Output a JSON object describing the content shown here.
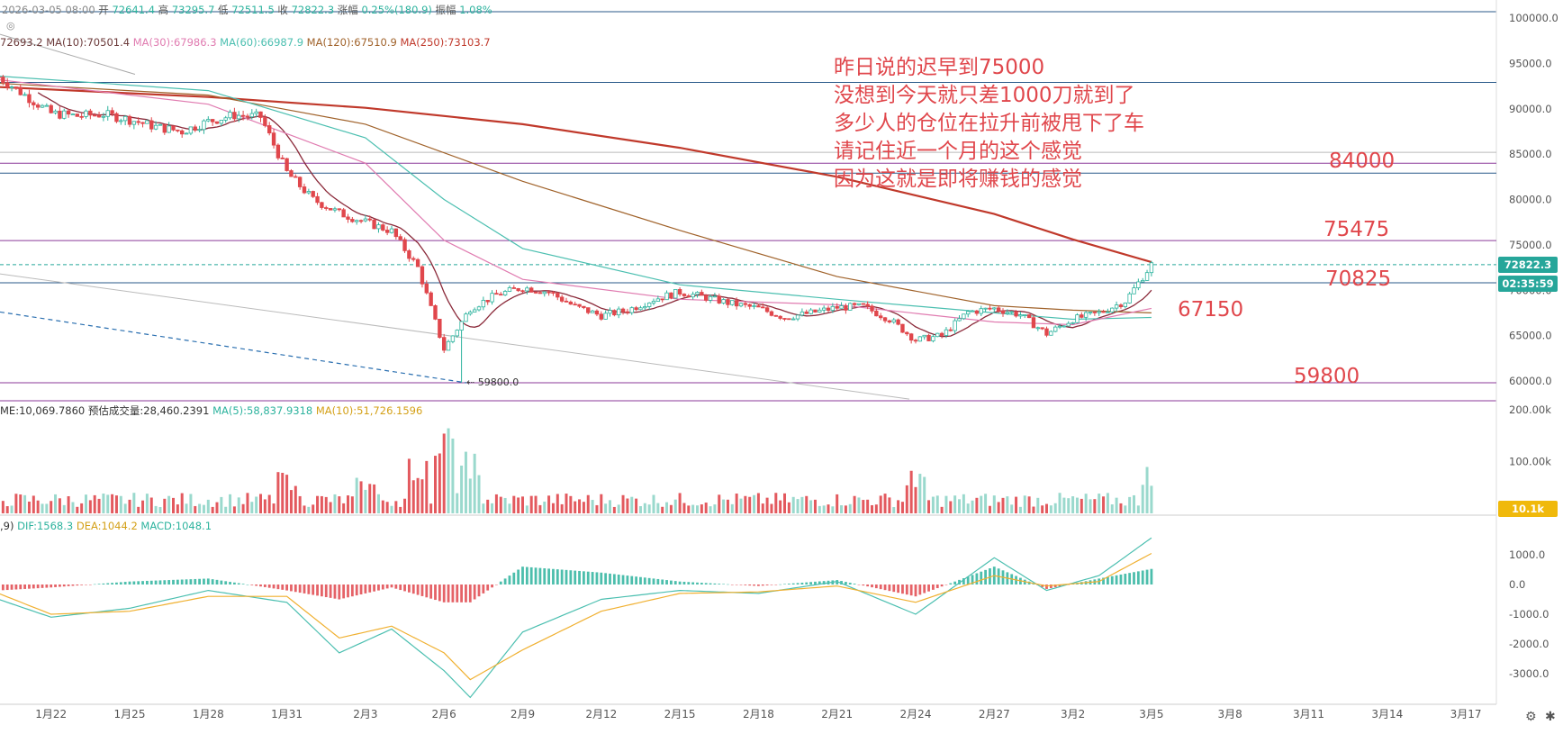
{
  "header": {
    "datetime": "2026-03-05 08:00",
    "open_label": "开",
    "open_value": "72641.4",
    "high_label": "高",
    "high_value": "73295.7",
    "low_label": "低",
    "low_value": "72511.5",
    "close_label": "收",
    "close_value": "72822.3",
    "change_label": "涨幅",
    "change_value": "0.25%(180.9)",
    "amp_label": "振幅",
    "amp_value": "1.08%"
  },
  "ma_legend": [
    {
      "text": "72693.2",
      "color": "#6b3a3a"
    },
    {
      "text": "MA(10):70501.4",
      "color": "#6b3a3a"
    },
    {
      "text": "MA(30):67986.3",
      "color": "#e07bb0"
    },
    {
      "text": "MA(60):66987.9",
      "color": "#4bbfb0"
    },
    {
      "text": "MA(120):67510.9",
      "color": "#a0622a"
    },
    {
      "text": "MA(250):73103.7",
      "color": "#c0392b"
    }
  ],
  "volume_legend": [
    {
      "text": "ME:10,069.7860",
      "color": "#333333"
    },
    {
      "text": "预估成交量:28,460.2391",
      "color": "#333333"
    },
    {
      "text": "MA(5):58,837.9318",
      "color": "#2db39e"
    },
    {
      "text": "MA(10):51,726.1596",
      "color": "#d4a017"
    }
  ],
  "macd_legend": [
    {
      "text": ",9)",
      "color": "#333333"
    },
    {
      "text": "DIF:1568.3",
      "color": "#2db39e"
    },
    {
      "text": "DEA:1044.2",
      "color": "#d4a017"
    },
    {
      "text": "MACD:1048.1",
      "color": "#2db39e"
    }
  ],
  "annotation": {
    "lines": [
      "昨日说的迟早到75000",
      "没想到今天就只差1000刀就到了",
      "多少人的仓位在拉升前被甩下了车",
      "请记住近一个月的这个感觉",
      "因为这就是即将赚钱的感觉"
    ],
    "color": "#e0474c"
  },
  "level_labels": [
    "84000",
    "75475",
    "70825",
    "67150",
    "59800"
  ],
  "low_marker": "59800.0",
  "price_tag": "72822.3",
  "countdown_tag": "02:35:59",
  "volume_tag": "10.1k",
  "bottom_right_icons": [
    "settings-icon",
    "explode-icon"
  ],
  "colors": {
    "up": "#2db39e",
    "down": "#e0474c",
    "ma250": "#c0392b",
    "ma120": "#a0622a",
    "ma60": "#4bbfb0",
    "ma30": "#e07bb0",
    "ma10": "#8b2a3a",
    "level": "#8b3a9a",
    "blue_level": "#2a5a8a",
    "tag": "#26a69a",
    "vol_tag": "#f0b90b"
  },
  "chart_data": [
    {
      "type": "candlestick",
      "title": "",
      "x_ticks": [
        "1月22",
        "1月25",
        "1月28",
        "1月31",
        "2月3",
        "2月6",
        "2月9",
        "2月12",
        "2月15",
        "2月18",
        "2月21",
        "2月24",
        "2月27",
        "3月2",
        "3月5",
        "3月8",
        "3月11",
        "3月14",
        "3月17"
      ],
      "y_ticks": [
        "100000.0",
        "95000.0",
        "90000.0",
        "85000.0",
        "80000.0",
        "75000.0",
        "70000.0",
        "65000.0",
        "60000.0"
      ],
      "ylim": [
        57800,
        101000
      ],
      "xlim_days": [
        "1月20",
        "3月17"
      ],
      "close_anchors": [
        [
          "1月20",
          93500
        ],
        [
          "1月21",
          91500
        ],
        [
          "1月22",
          89500
        ],
        [
          "1月23",
          89200
        ],
        [
          "1月24",
          89400
        ],
        [
          "1月25",
          88800
        ],
        [
          "1月26",
          88000
        ],
        [
          "1月27",
          87500
        ],
        [
          "1月28",
          88600
        ],
        [
          "1月29",
          89300
        ],
        [
          "1月30",
          89100
        ],
        [
          "1月31",
          83000
        ],
        [
          "2月1",
          80000
        ],
        [
          "2月2",
          78500
        ],
        [
          "2月3",
          77500
        ],
        [
          "2月4",
          76500
        ],
        [
          "2月5",
          72500
        ],
        [
          "2月6",
          63500
        ],
        [
          "2月7",
          68000
        ],
        [
          "2月8",
          69500
        ],
        [
          "2月9",
          70300
        ],
        [
          "2月10",
          69800
        ],
        [
          "2月11",
          68200
        ],
        [
          "2月12",
          67200
        ],
        [
          "2月13",
          67800
        ],
        [
          "2月14",
          69000
        ],
        [
          "2月15",
          69800
        ],
        [
          "2月16",
          69200
        ],
        [
          "2月17",
          68500
        ],
        [
          "2月18",
          68000
        ],
        [
          "2月19",
          67000
        ],
        [
          "2月20",
          67500
        ],
        [
          "2月21",
          68100
        ],
        [
          "2月22",
          68200
        ],
        [
          "2月23",
          66800
        ],
        [
          "2月24",
          64500
        ],
        [
          "2月25",
          65000
        ],
        [
          "2月26",
          67600
        ],
        [
          "2月27",
          68000
        ],
        [
          "2月28",
          67300
        ],
        [
          "3月1",
          65200
        ],
        [
          "3月2",
          66800
        ],
        [
          "3月3",
          67500
        ],
        [
          "3月4",
          68800
        ],
        [
          "3月5",
          72822
        ]
      ],
      "moving_averages": [
        {
          "name": "MA(250)",
          "points": [
            [
              "1月20",
              92400
            ],
            [
              "1月28",
              91300
            ],
            [
              "2月3",
              90100
            ],
            [
              "2月9",
              88300
            ],
            [
              "2月15",
              85700
            ],
            [
              "2月21",
              82500
            ],
            [
              "2月27",
              78400
            ],
            [
              "3月2",
              75600
            ],
            [
              "3月5",
              73100
            ]
          ]
        },
        {
          "name": "MA(120)",
          "points": [
            [
              "1月20",
              92800
            ],
            [
              "1月28",
              91500
            ],
            [
              "2月3",
              88300
            ],
            [
              "2月9",
              82000
            ],
            [
              "2月15",
              76600
            ],
            [
              "2月21",
              71500
            ],
            [
              "2月27",
              68300
            ],
            [
              "3月2",
              67800
            ],
            [
              "3月5",
              67500
            ]
          ]
        },
        {
          "name": "MA(60)",
          "points": [
            [
              "1月20",
              93600
            ],
            [
              "1月28",
              92000
            ],
            [
              "2月3",
              86800
            ],
            [
              "2月6",
              80000
            ],
            [
              "2月9",
              74600
            ],
            [
              "2月15",
              70600
            ],
            [
              "2月21",
              69000
            ],
            [
              "2月27",
              67500
            ],
            [
              "3月2",
              66800
            ],
            [
              "3月5",
              67000
            ]
          ]
        },
        {
          "name": "MA(30)",
          "points": [
            [
              "1月20",
              93200
            ],
            [
              "1月28",
              90500
            ],
            [
              "2月3",
              84000
            ],
            [
              "2月6",
              75500
            ],
            [
              "2月9",
              71200
            ],
            [
              "2月15",
              69000
            ],
            [
              "2月21",
              68400
            ],
            [
              "2月27",
              66500
            ],
            [
              "3月2",
              66200
            ],
            [
              "3月5",
              68000
            ]
          ]
        }
      ],
      "horizontal_levels": [
        {
          "label": "84000",
          "value": 84000,
          "color": "level"
        },
        {
          "label": "75475",
          "value": 75475,
          "color": "level"
        },
        {
          "label": "70825",
          "value": 70825,
          "color": "blue_level"
        },
        {
          "label": "59800",
          "value": 59800,
          "color": "level"
        }
      ],
      "annotated_level": {
        "label": "67150",
        "value": 67150
      }
    },
    {
      "type": "bar",
      "title": "",
      "y_ticks": [
        "200.00k",
        "100.00k"
      ],
      "ylim": [
        0,
        210
      ],
      "unit": "k",
      "spikes": [
        [
          "1月31",
          80
        ],
        [
          "2月3",
          70
        ],
        [
          "2月5",
          110
        ],
        [
          "2月6",
          180
        ],
        [
          "2月7",
          120
        ],
        [
          "2月24",
          85
        ],
        [
          "3月5",
          95
        ]
      ]
    },
    {
      "type": "bar",
      "title": "",
      "y_ticks": [
        "1000.0",
        "0.0",
        "-1000.0",
        "-2000.0",
        "-3000.0"
      ],
      "ylim": [
        -3800,
        1600
      ],
      "dif_anchors": [
        [
          "1月20",
          -500
        ],
        [
          "1月22",
          -1100
        ],
        [
          "1月25",
          -800
        ],
        [
          "1月28",
          -200
        ],
        [
          "1月31",
          -600
        ],
        [
          "2月2",
          -2300
        ],
        [
          "2月4",
          -1500
        ],
        [
          "2月6",
          -2900
        ],
        [
          "2月7",
          -3800
        ],
        [
          "2月9",
          -1600
        ],
        [
          "2月12",
          -500
        ],
        [
          "2月15",
          -200
        ],
        [
          "2月18",
          -300
        ],
        [
          "2月21",
          100
        ],
        [
          "2月24",
          -1000
        ],
        [
          "2月27",
          900
        ],
        [
          "3月1",
          -200
        ],
        [
          "3月3",
          300
        ],
        [
          "3月5",
          1568
        ]
      ],
      "dea_anchors": [
        [
          "1月20",
          -300
        ],
        [
          "1月22",
          -1000
        ],
        [
          "1月25",
          -900
        ],
        [
          "1月28",
          -400
        ],
        [
          "1月31",
          -400
        ],
        [
          "2月2",
          -1800
        ],
        [
          "2月4",
          -1400
        ],
        [
          "2月6",
          -2300
        ],
        [
          "2月7",
          -3200
        ],
        [
          "2月9",
          -2200
        ],
        [
          "2月12",
          -900
        ],
        [
          "2月15",
          -300
        ],
        [
          "2月18",
          -250
        ],
        [
          "2月21",
          -50
        ],
        [
          "2月24",
          -600
        ],
        [
          "2月27",
          300
        ],
        [
          "3月1",
          -50
        ],
        [
          "3月3",
          100
        ],
        [
          "3月5",
          1044
        ]
      ]
    }
  ]
}
